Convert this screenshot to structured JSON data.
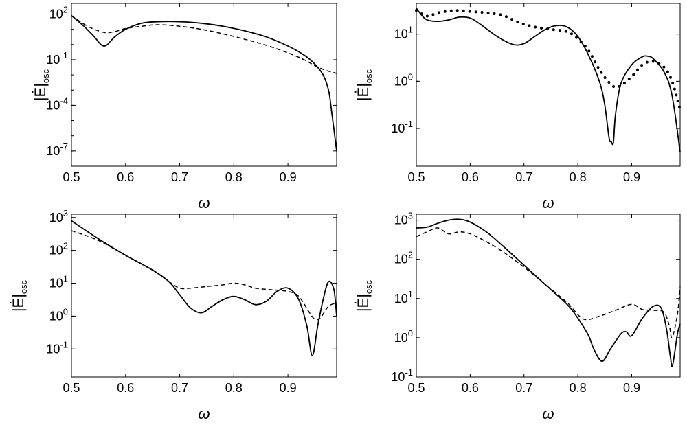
{
  "chart_data": [
    {
      "type": "line",
      "xlabel": "ω",
      "ylabel_main": "|Ė|",
      "ylabel_sub": "osc",
      "y_scale": "log",
      "xlim": [
        0.5,
        0.99
      ],
      "ylim_log10": [
        -8.0,
        2.7
      ],
      "x_ticks": [
        0.5,
        0.6,
        0.7,
        0.8,
        0.9
      ],
      "x_tick_labels": [
        "0.5",
        "0.6",
        "0.7",
        "0.8",
        "0.9"
      ],
      "y_ticks_log10": [
        2,
        -1,
        -4,
        -7
      ],
      "y_tick_bases": [
        "10",
        "10",
        "10",
        "10"
      ],
      "y_tick_exps": [
        "2",
        "-1",
        "-4",
        "-7"
      ],
      "series": [
        {
          "name": "solid",
          "style": "solid",
          "x": [
            0.5,
            0.52,
            0.54,
            0.56,
            0.58,
            0.6,
            0.63,
            0.66,
            0.7,
            0.74,
            0.78,
            0.82,
            0.86,
            0.9,
            0.93,
            0.95,
            0.965,
            0.975,
            0.98,
            0.985,
            0.99
          ],
          "log10y": [
            1.9,
            1.3,
            0.6,
            -0.1,
            0.5,
            1.0,
            1.4,
            1.5,
            1.5,
            1.4,
            1.2,
            0.9,
            0.5,
            -0.1,
            -0.7,
            -1.3,
            -2.0,
            -3.0,
            -4.2,
            -5.6,
            -7.0
          ]
        },
        {
          "name": "dashed",
          "style": "dashed",
          "x": [
            0.5,
            0.53,
            0.56,
            0.58,
            0.6,
            0.63,
            0.66,
            0.7,
            0.74,
            0.78,
            0.82,
            0.86,
            0.9,
            0.93,
            0.95,
            0.97,
            0.99
          ],
          "log10y": [
            1.9,
            1.2,
            0.8,
            0.85,
            1.05,
            1.2,
            1.3,
            1.2,
            1.0,
            0.7,
            0.35,
            -0.05,
            -0.55,
            -1.0,
            -1.4,
            -1.7,
            -1.9
          ]
        }
      ]
    },
    {
      "type": "line",
      "xlabel": "ω",
      "ylabel_main": "|Ė|",
      "ylabel_sub": "osc",
      "y_scale": "log",
      "xlim": [
        0.5,
        0.99
      ],
      "ylim_log10": [
        -1.8,
        1.65
      ],
      "x_ticks": [
        0.5,
        0.6,
        0.7,
        0.8,
        0.9
      ],
      "x_tick_labels": [
        "0.5",
        "0.6",
        "0.7",
        "0.8",
        "0.9"
      ],
      "y_ticks_log10": [
        1,
        0,
        -1
      ],
      "y_tick_bases": [
        "10",
        "10",
        "10"
      ],
      "y_tick_exps": [
        "1",
        "0",
        "-1"
      ],
      "series": [
        {
          "name": "solid",
          "style": "solid",
          "x": [
            0.5,
            0.51,
            0.52,
            0.54,
            0.56,
            0.58,
            0.6,
            0.62,
            0.65,
            0.68,
            0.7,
            0.72,
            0.74,
            0.76,
            0.78,
            0.8,
            0.82,
            0.84,
            0.85,
            0.858,
            0.862,
            0.866,
            0.87,
            0.88,
            0.9,
            0.92,
            0.93,
            0.94,
            0.96,
            0.975,
            0.99
          ],
          "log10y": [
            1.55,
            1.4,
            1.3,
            1.27,
            1.3,
            1.36,
            1.34,
            1.2,
            0.95,
            0.78,
            0.8,
            0.95,
            1.1,
            1.18,
            1.15,
            0.95,
            0.55,
            0.0,
            -0.5,
            -1.2,
            -1.28,
            -1.3,
            -0.7,
            -0.05,
            0.35,
            0.52,
            0.53,
            0.48,
            0.2,
            -0.3,
            -1.5
          ]
        },
        {
          "name": "dotted",
          "style": "dotted",
          "x": [
            0.5,
            0.52,
            0.54,
            0.57,
            0.6,
            0.63,
            0.66,
            0.69,
            0.72,
            0.75,
            0.78,
            0.8,
            0.82,
            0.84,
            0.86,
            0.875,
            0.9,
            0.92,
            0.94,
            0.96,
            0.975,
            0.99
          ],
          "log10y": [
            1.5,
            1.38,
            1.45,
            1.5,
            1.48,
            1.45,
            1.4,
            1.25,
            1.15,
            1.1,
            1.05,
            0.9,
            0.65,
            0.25,
            -0.05,
            -0.12,
            0.1,
            0.35,
            0.42,
            0.3,
            0.0,
            -0.6
          ]
        }
      ]
    },
    {
      "type": "line",
      "xlabel": "ω",
      "ylabel_main": "|Ė|",
      "ylabel_sub": "osc",
      "y_scale": "log",
      "xlim": [
        0.5,
        0.99
      ],
      "ylim_log10": [
        -1.85,
        3.1
      ],
      "x_ticks": [
        0.5,
        0.6,
        0.7,
        0.8,
        0.9
      ],
      "x_tick_labels": [
        "0.5",
        "0.6",
        "0.7",
        "0.8",
        "0.9"
      ],
      "y_ticks_log10": [
        3,
        2,
        1,
        0,
        -1
      ],
      "y_tick_bases": [
        "10",
        "10",
        "10",
        "10",
        "10"
      ],
      "y_tick_exps": [
        "3",
        "2",
        "1",
        "0",
        "-1"
      ],
      "series": [
        {
          "name": "solid",
          "style": "solid",
          "x": [
            0.5,
            0.55,
            0.6,
            0.65,
            0.68,
            0.7,
            0.72,
            0.74,
            0.76,
            0.78,
            0.8,
            0.82,
            0.84,
            0.86,
            0.88,
            0.9,
            0.92,
            0.935,
            0.945,
            0.955,
            0.965,
            0.975,
            0.985,
            0.99
          ],
          "log10y": [
            2.9,
            2.35,
            1.85,
            1.4,
            1.05,
            0.65,
            0.25,
            0.1,
            0.3,
            0.5,
            0.6,
            0.5,
            0.35,
            0.45,
            0.75,
            0.85,
            0.5,
            -0.3,
            -1.2,
            -0.3,
            0.5,
            1.05,
            0.8,
            0.0
          ]
        },
        {
          "name": "dashed",
          "style": "dashed",
          "x": [
            0.5,
            0.55,
            0.6,
            0.65,
            0.68,
            0.7,
            0.72,
            0.75,
            0.78,
            0.8,
            0.82,
            0.84,
            0.87,
            0.9,
            0.92,
            0.94,
            0.95,
            0.96,
            0.975,
            0.99
          ],
          "log10y": [
            2.6,
            2.3,
            1.85,
            1.4,
            1.05,
            0.85,
            0.85,
            0.9,
            0.95,
            1.0,
            0.95,
            0.85,
            0.8,
            0.75,
            0.6,
            0.1,
            -0.1,
            -0.05,
            0.3,
            0.4
          ]
        }
      ]
    },
    {
      "type": "line",
      "xlabel": "ω",
      "ylabel_main": "|Ė|",
      "ylabel_sub": "osc",
      "y_scale": "log",
      "xlim": [
        0.5,
        0.99
      ],
      "ylim_log10": [
        -1.0,
        3.15
      ],
      "x_ticks": [
        0.5,
        0.6,
        0.7,
        0.8,
        0.9
      ],
      "x_tick_labels": [
        "0.5",
        "0.6",
        "0.7",
        "0.8",
        "0.9"
      ],
      "y_ticks_log10": [
        3,
        2,
        1,
        0,
        -1
      ],
      "y_tick_bases": [
        "10",
        "10",
        "10",
        "10",
        "10"
      ],
      "y_tick_exps": [
        "3",
        "2",
        "1",
        "0",
        "-1"
      ],
      "series": [
        {
          "name": "solid",
          "style": "solid",
          "x": [
            0.5,
            0.52,
            0.54,
            0.56,
            0.58,
            0.6,
            0.63,
            0.66,
            0.7,
            0.74,
            0.78,
            0.8,
            0.82,
            0.83,
            0.845,
            0.86,
            0.88,
            0.89,
            0.9,
            0.92,
            0.94,
            0.955,
            0.965,
            0.972,
            0.976,
            0.985,
            0.99
          ],
          "log10y": [
            2.8,
            2.82,
            2.92,
            3.0,
            3.02,
            2.95,
            2.7,
            2.35,
            1.85,
            1.35,
            0.85,
            0.5,
            0.05,
            -0.3,
            -0.6,
            -0.3,
            0.1,
            0.15,
            0.05,
            0.5,
            0.8,
            0.75,
            0.2,
            -0.5,
            -0.7,
            0.1,
            0.35
          ]
        },
        {
          "name": "dashed",
          "style": "dashed",
          "x": [
            0.5,
            0.52,
            0.54,
            0.56,
            0.58,
            0.6,
            0.63,
            0.66,
            0.7,
            0.74,
            0.78,
            0.81,
            0.84,
            0.87,
            0.9,
            0.92,
            0.94,
            0.96,
            0.97,
            0.975,
            0.985,
            0.99
          ],
          "log10y": [
            2.58,
            2.7,
            2.8,
            2.65,
            2.7,
            2.65,
            2.45,
            2.2,
            1.8,
            1.35,
            0.9,
            0.48,
            0.55,
            0.7,
            0.85,
            0.72,
            0.7,
            0.65,
            0.3,
            0.0,
            0.6,
            1.3
          ]
        }
      ]
    }
  ]
}
